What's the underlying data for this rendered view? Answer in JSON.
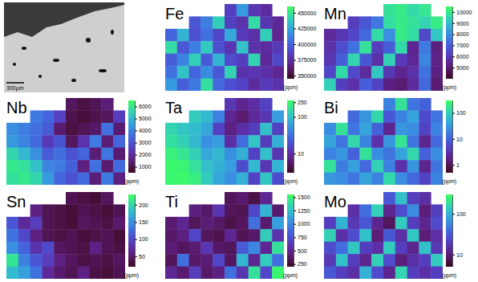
{
  "chart_data": [
    {
      "type": "image",
      "scale_bar": "300μm"
    },
    {
      "type": "heatmap",
      "title": "Fe",
      "zlim": [
        345000,
        460000
      ],
      "zticks": [
        350000,
        375000,
        400000,
        425000,
        450000
      ],
      "zlabel": "(ppm)",
      "cells": [
        [
          null,
          null,
          null,
          null,
          null,
          385000,
          420000,
          380000,
          375000,
          null
        ],
        [
          null,
          null,
          395000,
          410000,
          440000,
          385000,
          378000,
          445000,
          380000,
          372000
        ],
        [
          400000,
          430000,
          392000,
          405000,
          388000,
          425000,
          382000,
          376000,
          440000,
          370000
        ],
        [
          445000,
          395000,
          410000,
          438000,
          392000,
          380000,
          435000,
          378000,
          374000,
          382000
        ],
        [
          398000,
          412000,
          440000,
          396000,
          430000,
          390000,
          384000,
          442000,
          372000,
          388000
        ],
        [
          405000,
          436000,
          400000,
          415000,
          395000,
          442000,
          378000,
          380000,
          376000,
          370000
        ],
        [
          420000,
          398000,
          408000,
          446000,
          402000,
          392000,
          386000,
          374000,
          382000,
          378000
        ]
      ]
    },
    {
      "type": "heatmap",
      "title": "Mn",
      "zlim": [
        4000,
        10500
      ],
      "zticks": [
        5000,
        6000,
        7000,
        8000,
        9000,
        10000
      ],
      "zlabel": "(ppm)",
      "cells": [
        [
          null,
          null,
          null,
          null,
          null,
          9800,
          10000,
          9600,
          9900,
          null
        ],
        [
          null,
          null,
          6200,
          6800,
          7500,
          9700,
          10000,
          9800,
          9500,
          10000
        ],
        [
          5600,
          6000,
          6400,
          7200,
          9600,
          8000,
          10000,
          9700,
          6500,
          9200
        ],
        [
          5800,
          6600,
          7400,
          9800,
          6200,
          7000,
          9600,
          5400,
          7600,
          5200
        ],
        [
          6000,
          7000,
          9500,
          6800,
          5800,
          9400,
          6100,
          5500,
          7800,
          5300
        ],
        [
          6400,
          9600,
          6500,
          5600,
          9200,
          6000,
          5400,
          5800,
          7400,
          5200
        ],
        [
          9400,
          6200,
          5800,
          7000,
          6300,
          5200,
          5000,
          5600,
          7200,
          5000
        ]
      ]
    },
    {
      "type": "heatmap",
      "title": "Nb",
      "zlim": [
        500,
        6500
      ],
      "zticks": [
        1000,
        2000,
        3000,
        4000,
        5000,
        6000
      ],
      "zlabel": "(ppm)",
      "cells": [
        [
          null,
          null,
          null,
          null,
          null,
          1200,
          900,
          1100,
          1500,
          null
        ],
        [
          null,
          null,
          3800,
          3400,
          2600,
          1000,
          800,
          1000,
          1200,
          2500
        ],
        [
          4200,
          3900,
          3600,
          3200,
          1400,
          900,
          1100,
          1300,
          3600,
          1400
        ],
        [
          4400,
          4000,
          3500,
          2400,
          3000,
          1200,
          2200,
          3800,
          1500,
          3400
        ],
        [
          5600,
          5000,
          4200,
          3200,
          3600,
          3000,
          3400,
          1500,
          3700,
          1400
        ],
        [
          6000,
          5800,
          5200,
          4000,
          3800,
          3300,
          1600,
          3600,
          1400,
          3500
        ],
        [
          5800,
          6000,
          5600,
          4400,
          3400,
          3000,
          3500,
          1500,
          3800,
          1600
        ]
      ]
    },
    {
      "type": "heatmap",
      "title": "Ta",
      "log": true,
      "zlim": [
        3,
        280
      ],
      "zticks": [
        10,
        100,
        250
      ],
      "zlabel": "(ppm)",
      "cells": [
        [
          null,
          null,
          null,
          null,
          null,
          12,
          8,
          10,
          15,
          null
        ],
        [
          null,
          null,
          120,
          90,
          40,
          8,
          6,
          9,
          12,
          60
        ],
        [
          140,
          110,
          95,
          70,
          15,
          7,
          10,
          14,
          100,
          15
        ],
        [
          160,
          130,
          90,
          50,
          60,
          10,
          30,
          110,
          14,
          80
        ],
        [
          220,
          180,
          130,
          70,
          90,
          50,
          80,
          15,
          100,
          12
        ],
        [
          250,
          230,
          170,
          100,
          80,
          60,
          18,
          90,
          12,
          85
        ],
        [
          240,
          250,
          210,
          120,
          70,
          50,
          80,
          15,
          110,
          18
        ]
      ]
    },
    {
      "type": "heatmap",
      "title": "Bi",
      "log": true,
      "zlim": [
        0.5,
        300
      ],
      "zticks": [
        1,
        10,
        100
      ],
      "zlabel": "(ppm)",
      "cells": [
        [
          null,
          null,
          null,
          null,
          null,
          20,
          150,
          15,
          10,
          null
        ],
        [
          null,
          null,
          12,
          30,
          120,
          8,
          20,
          40,
          6,
          15
        ],
        [
          25,
          150,
          15,
          40,
          10,
          2,
          30,
          25,
          5,
          20
        ],
        [
          40,
          15,
          120,
          20,
          3,
          30,
          160,
          15,
          2,
          12
        ],
        [
          20,
          30,
          10,
          150,
          25,
          15,
          40,
          120,
          10,
          25
        ],
        [
          150,
          18,
          35,
          12,
          100,
          20,
          3,
          30,
          2,
          15
        ],
        [
          30,
          25,
          15,
          40,
          20,
          120,
          25,
          12,
          5,
          20
        ]
      ]
    },
    {
      "type": "heatmap",
      "title": "Sn",
      "zlim": [
        20,
        230
      ],
      "zticks": [
        50,
        100,
        150,
        200
      ],
      "zlabel": "(ppm)",
      "cells": [
        [
          null,
          null,
          null,
          null,
          null,
          40,
          35,
          30,
          45,
          null
        ],
        [
          null,
          null,
          60,
          40,
          35,
          30,
          40,
          35,
          30,
          40
        ],
        [
          110,
          70,
          90,
          40,
          35,
          30,
          45,
          40,
          35,
          50
        ],
        [
          130,
          100,
          60,
          40,
          35,
          40,
          30,
          35,
          40,
          30
        ],
        [
          150,
          120,
          80,
          100,
          45,
          40,
          35,
          60,
          40,
          35
        ],
        [
          210,
          140,
          110,
          90,
          60,
          45,
          35,
          40,
          35,
          45
        ],
        [
          180,
          160,
          130,
          70,
          50,
          40,
          60,
          35,
          30,
          40
        ]
      ]
    },
    {
      "type": "heatmap",
      "title": "Ti",
      "zlim": [
        200,
        1550
      ],
      "zticks": [
        250,
        500,
        750,
        1000,
        1250,
        1500
      ],
      "zlabel": "(ppm)",
      "cells": [
        [
          null,
          null,
          null,
          null,
          null,
          350,
          400,
          300,
          500,
          null
        ],
        [
          null,
          null,
          450,
          380,
          600,
          350,
          320,
          700,
          1200,
          400
        ],
        [
          400,
          500,
          350,
          420,
          380,
          300,
          360,
          900,
          400,
          1100
        ],
        [
          380,
          450,
          700,
          350,
          320,
          500,
          340,
          380,
          1300,
          600
        ],
        [
          420,
          360,
          400,
          600,
          380,
          350,
          800,
          1000,
          500,
          1400
        ],
        [
          350,
          900,
          380,
          420,
          700,
          360,
          1200,
          500,
          1300,
          900
        ],
        [
          500,
          400,
          650,
          380,
          450,
          900,
          600,
          1400,
          700,
          1500
        ]
      ]
    },
    {
      "type": "heatmap",
      "title": "Mo",
      "log": true,
      "zlim": [
        5,
        300
      ],
      "zticks": [
        10,
        100
      ],
      "zlabel": "(ppm)",
      "cells": [
        [
          null,
          null,
          null,
          null,
          null,
          30,
          120,
          20,
          15,
          null
        ],
        [
          null,
          null,
          15,
          40,
          150,
          12,
          25,
          60,
          10,
          20
        ],
        [
          20,
          100,
          18,
          30,
          12,
          8,
          140,
          20,
          12,
          25
        ],
        [
          150,
          15,
          25,
          120,
          10,
          30,
          15,
          130,
          10,
          15
        ],
        [
          25,
          40,
          130,
          20,
          15,
          140,
          20,
          12,
          120,
          18
        ],
        [
          18,
          120,
          20,
          12,
          150,
          25,
          10,
          15,
          20,
          140
        ],
        [
          30,
          20,
          15,
          100,
          25,
          12,
          160,
          20,
          15,
          20
        ]
      ]
    }
  ]
}
